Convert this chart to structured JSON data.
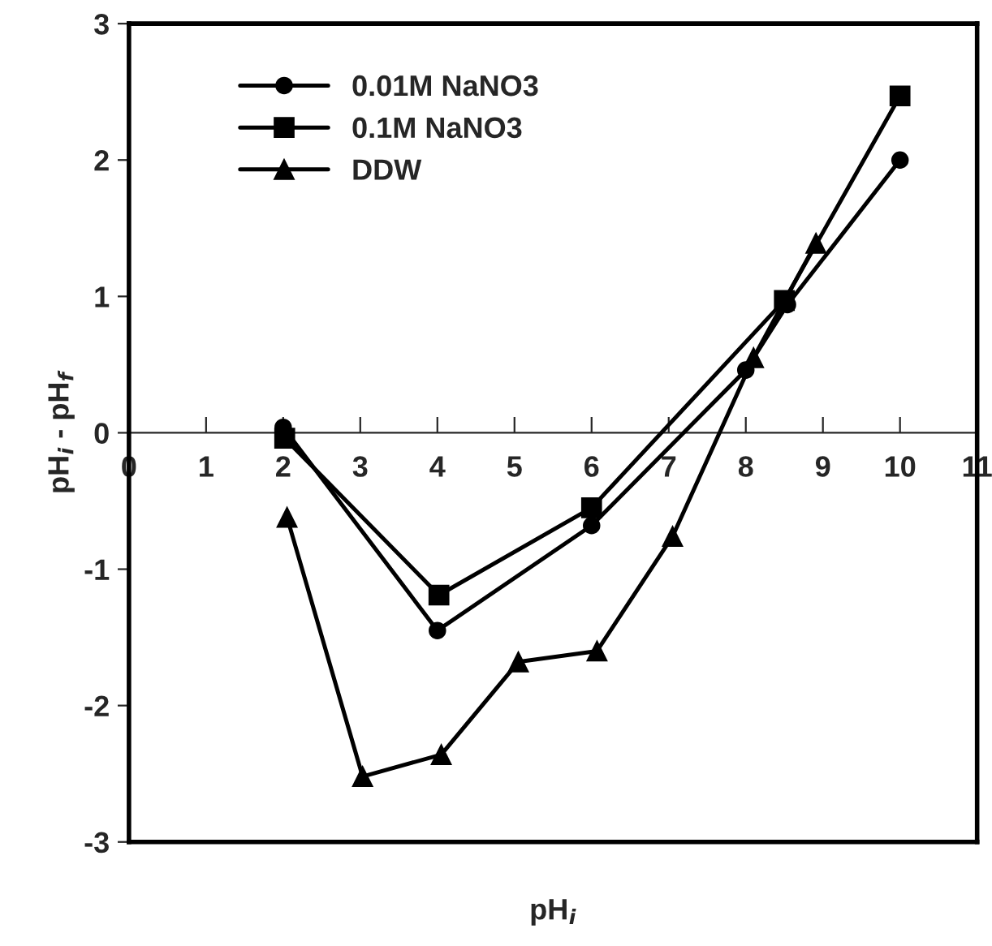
{
  "chart_data": {
    "type": "line",
    "xlabel": "pH$_{i}$",
    "ylabel": "pH$_{i}$ - pH$_{f}$",
    "xlim": [
      0,
      11
    ],
    "ylim": [
      -3,
      3
    ],
    "xticks": [
      0,
      1,
      2,
      3,
      4,
      5,
      6,
      7,
      8,
      9,
      10,
      11
    ],
    "yticks": [
      -3,
      -2,
      -1,
      0,
      1,
      2,
      3
    ],
    "grid": false,
    "legend": "top left",
    "line_style": "solid",
    "series": [
      {
        "name": "0.01M NaNO3",
        "color": "#000000",
        "marker": "circle",
        "x": [
          2.0,
          4.0,
          6.0,
          8.0,
          8.54,
          10.0
        ],
        "values": [
          0.04,
          -1.45,
          -0.68,
          0.46,
          0.94,
          2.0
        ]
      },
      {
        "name": "0.1M NaNO3",
        "color": "#000000",
        "marker": "square",
        "x": [
          2.02,
          4.02,
          6.0,
          8.5,
          10.0
        ],
        "values": [
          -0.04,
          -1.19,
          -0.55,
          0.97,
          2.47
        ]
      },
      {
        "name": "DDW",
        "color": "#000000",
        "marker": "triangle",
        "x": [
          2.05,
          3.03,
          4.05,
          5.05,
          6.07,
          7.05,
          8.1,
          8.91
        ],
        "values": [
          -0.62,
          -2.52,
          -2.36,
          -1.68,
          -1.6,
          -0.76,
          0.55,
          1.39
        ]
      }
    ]
  }
}
